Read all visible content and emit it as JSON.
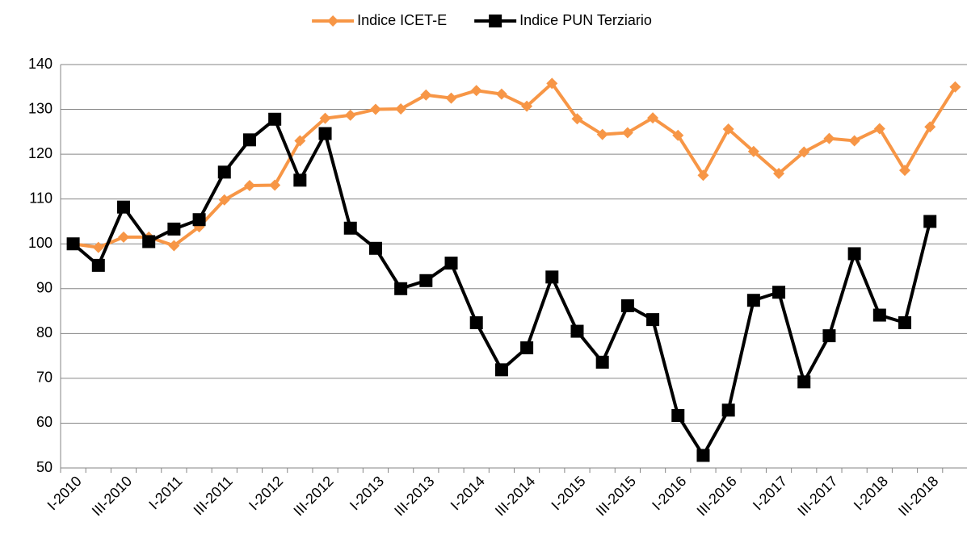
{
  "chart_data": {
    "type": "line",
    "categories": [
      "I-2010",
      null,
      "III-2010",
      null,
      "I-2011",
      null,
      "III-2011",
      null,
      "I-2012",
      null,
      "III-2012",
      null,
      "I-2013",
      null,
      "III-2013",
      null,
      "I-2014",
      null,
      "III-2014",
      null,
      "I-2015",
      null,
      "III-2015",
      null,
      "I-2016",
      null,
      "III-2016",
      null,
      "I-2017",
      null,
      "III-2017",
      null,
      "I-2018",
      null,
      "III-2018",
      null
    ],
    "series": [
      {
        "name": "Indice ICET-E",
        "color": "#f79646",
        "marker": "diamond",
        "values": [
          100,
          99.2,
          101.5,
          101.5,
          99.6,
          103.8,
          109.8,
          113,
          113.1,
          123,
          128,
          128.7,
          130,
          130.1,
          133.2,
          132.5,
          134.2,
          133.4,
          130.7,
          135.8,
          127.9,
          124.4,
          124.8,
          128.1,
          124.2,
          115.3,
          125.6,
          120.6,
          115.7,
          120.5,
          123.5,
          123,
          125.7,
          116.4,
          126.1,
          135
        ]
      },
      {
        "name": "Indice PUN Terziario",
        "color": "#000000",
        "marker": "square",
        "values": [
          100,
          95.2,
          108.2,
          100.5,
          103.3,
          105.4,
          116,
          123.2,
          127.8,
          114.2,
          124.6,
          103.5,
          99,
          90,
          91.8,
          95.7,
          82.4,
          71.9,
          76.8,
          92.6,
          80.5,
          73.6,
          86.2,
          83.1,
          61.7,
          52.8,
          62.9,
          87.4,
          89.2,
          69.2,
          79.5,
          97.8,
          84.1,
          82.4,
          105,
          null
        ]
      }
    ],
    "ylim": [
      50,
      140
    ],
    "yticks": [
      50,
      60,
      70,
      80,
      90,
      100,
      110,
      120,
      130,
      140
    ],
    "grid": true,
    "legend": "top"
  }
}
